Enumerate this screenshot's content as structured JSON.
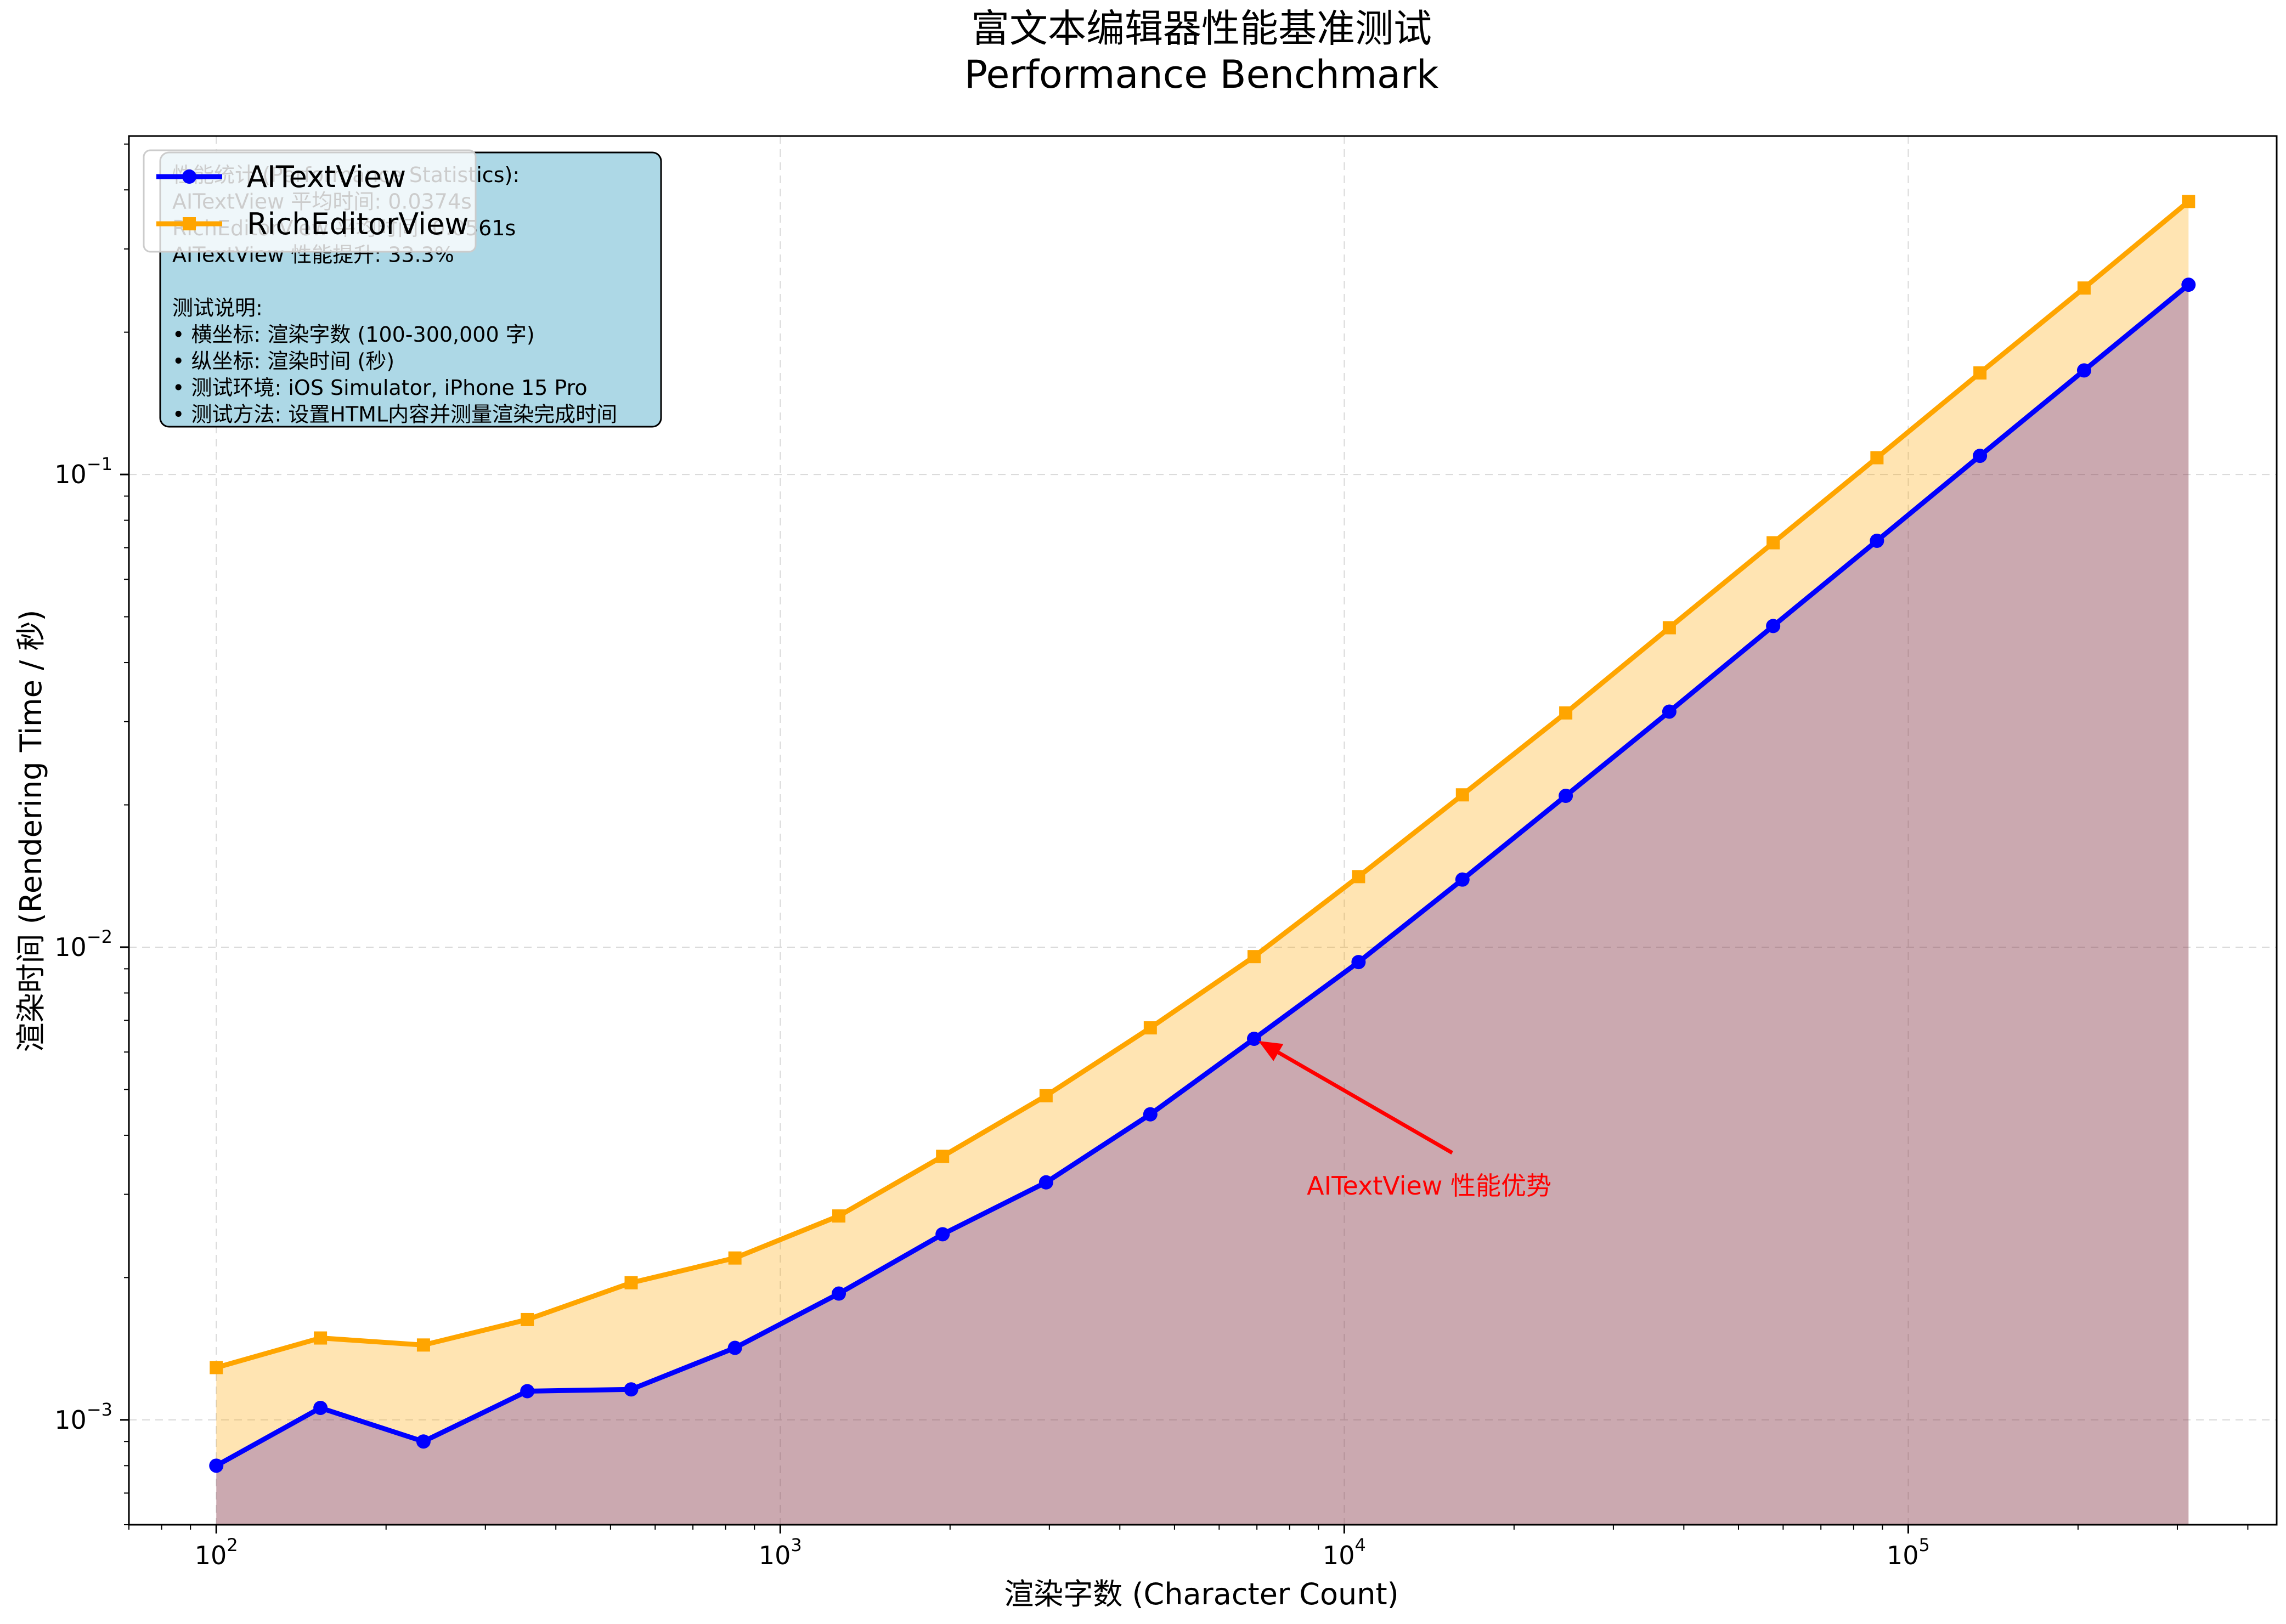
{
  "chart_data": {
    "type": "line",
    "title": "富文本编辑器性能基准测试",
    "subtitle": "Performance Benchmark",
    "xlabel": "渲染字数 (Character Count)",
    "ylabel": "渲染时间 (Rendering Time / 秒)",
    "xscale": "log",
    "yscale": "log",
    "xlim": [
      70,
      450000
    ],
    "ylim": [
      0.0006,
      0.52
    ],
    "grid": true,
    "legend_position": "top-left",
    "x": [
      100,
      153,
      233,
      356,
      544,
      831,
      1270,
      1940,
      2960,
      4530,
      6920,
      10600,
      16200,
      24700,
      37700,
      57600,
      88000,
      134000,
      205000,
      314000
    ],
    "series": [
      {
        "name": "AITextView",
        "color": "#0000ff",
        "marker": "circle",
        "values": [
          0.0008,
          0.00106,
          0.0009,
          0.00115,
          0.00116,
          0.00142,
          0.00185,
          0.00247,
          0.00318,
          0.00443,
          0.0064,
          0.0093,
          0.0139,
          0.0209,
          0.0315,
          0.0478,
          0.0724,
          0.1095,
          0.166,
          0.252
        ]
      },
      {
        "name": "RichEditorView",
        "color": "#ffa500",
        "marker": "square",
        "values": [
          0.00129,
          0.00149,
          0.00144,
          0.00163,
          0.00195,
          0.0022,
          0.0027,
          0.00361,
          0.00485,
          0.00675,
          0.00955,
          0.0141,
          0.021,
          0.0313,
          0.0474,
          0.0717,
          0.1085,
          0.164,
          0.248,
          0.378
        ]
      }
    ],
    "x_ticks": [
      {
        "base": "10",
        "exp": "2",
        "value": 100
      },
      {
        "base": "10",
        "exp": "3",
        "value": 1000
      },
      {
        "base": "10",
        "exp": "4",
        "value": 10000
      },
      {
        "base": "10",
        "exp": "5",
        "value": 100000
      }
    ],
    "y_ticks": [
      {
        "base": "10",
        "exp": "−3",
        "value": 0.001
      },
      {
        "base": "10",
        "exp": "−2",
        "value": 0.01
      },
      {
        "base": "10",
        "exp": "−1",
        "value": 0.1
      }
    ],
    "annotation": {
      "text": "AITextView 性能优势",
      "color": "#ff0000",
      "target_x": 6920,
      "target_y": 0.0064,
      "text_x": 10500,
      "text_y": 0.0033
    },
    "stats_box": {
      "lines": [
        "性能统计 (Performance Statistics):",
        "AITextView 平均时间: 0.0374s",
        "RichEditorView 平均时间: 0.0561s",
        "AITextView 性能提升: 33.3%",
        "",
        "测试说明:",
        "• 横坐标: 渲染字数 (100-300,000 字)",
        "• 纵坐标: 渲染时间 (秒)",
        "• 测试环境: iOS Simulator, iPhone 15 Pro",
        "• 测试方法: 设置HTML内容并测量渲染完成时间"
      ],
      "background": "#add8e6"
    }
  }
}
